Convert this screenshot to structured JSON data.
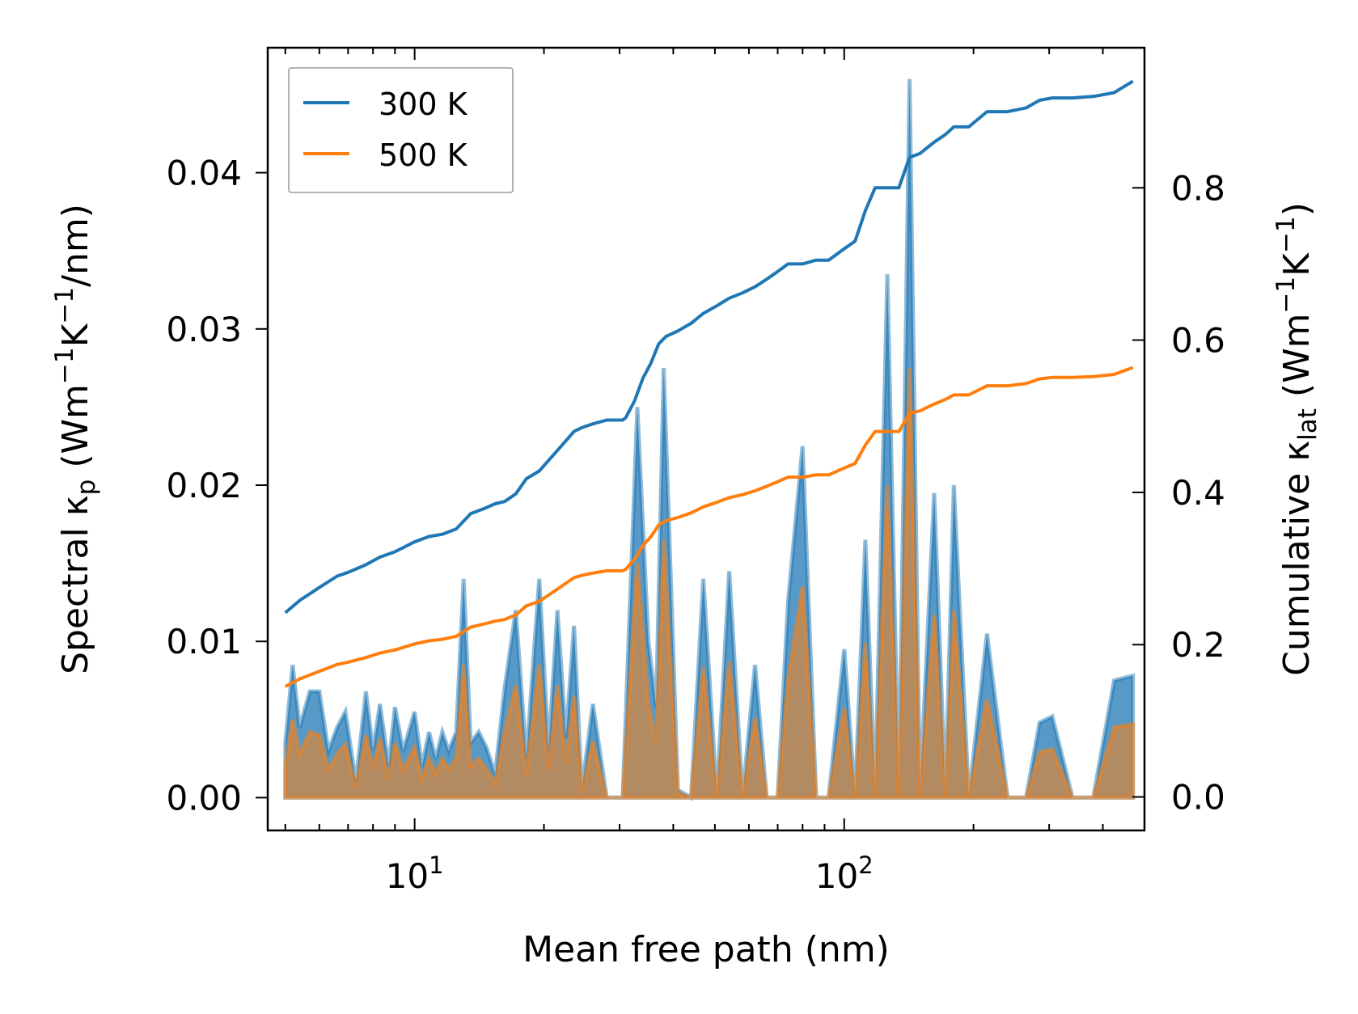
{
  "chart_data": {
    "type": "line",
    "xscale": "log",
    "xlim": [
      4.55,
      500
    ],
    "xlabel": "Mean free path (nm)",
    "x_ticks": [
      {
        "value": 10,
        "base": "10",
        "exp": "1"
      },
      {
        "value": 100,
        "base": "10",
        "exp": "2"
      }
    ],
    "left_axis": {
      "label_prefix": "Spectral κ",
      "label_sub": "p",
      "label_unit_1": " (Wm",
      "label_sup_1": "−1",
      "label_unit_2": "K",
      "label_sup_2": "−1",
      "label_unit_3": "/nm)",
      "ylim": [
        -0.0021,
        0.048
      ],
      "ticks": [
        0.0,
        0.01,
        0.02,
        0.03,
        0.04
      ],
      "tick_labels": [
        "0.00",
        "0.01",
        "0.02",
        "0.03",
        "0.04"
      ]
    },
    "right_axis": {
      "label_prefix": "Cumulative κ",
      "label_sub": "lat",
      "label_unit_1": " (Wm",
      "label_sup_1": "−1",
      "label_unit_2": "K",
      "label_sup_2": "−1",
      "label_unit_3": ")",
      "ylim": [
        -0.044,
        0.984
      ],
      "ticks": [
        0.0,
        0.2,
        0.4,
        0.6,
        0.8
      ],
      "tick_labels": [
        "0.0",
        "0.2",
        "0.4",
        "0.6",
        "0.8"
      ]
    },
    "legend": {
      "position": "top-left",
      "entries": [
        {
          "label": "300 K",
          "color": "#1f77b4"
        },
        {
          "label": "500 K",
          "color": "#ff7f0e"
        }
      ]
    },
    "series": [
      {
        "name": "300 K",
        "color": "#1f77b4",
        "spectral": {
          "x": [
            5.0,
            5.2,
            5.4,
            5.7,
            6.0,
            6.3,
            6.6,
            6.9,
            7.3,
            7.7,
            8.0,
            8.3,
            8.7,
            9.0,
            9.4,
            10.0,
            10.4,
            10.8,
            11.2,
            11.6,
            12.0,
            12.5,
            13.0,
            13.5,
            14.1,
            14.7,
            15.4,
            16.2,
            17.2,
            18.2,
            19.5,
            20.5,
            21.5,
            22.5,
            23.5,
            24.5,
            26.0,
            28.0,
            30.5,
            33.0,
            35.0,
            36.5,
            38.0,
            41.0,
            44.0,
            47.0,
            50.5,
            54.0,
            58.0,
            62.0,
            66.0,
            70.0,
            74.0,
            80.0,
            86.0,
            92.0,
            100.0,
            106.0,
            112.0,
            118.0,
            126.0,
            134.0,
            142.0,
            150.0,
            162.0,
            172.0,
            180.0,
            195.0,
            215.0,
            240.0,
            265.0,
            285.0,
            305.0,
            340.0,
            380.0,
            425.0,
            470.0
          ],
          "values": [
            0.0035,
            0.0085,
            0.0045,
            0.0068,
            0.0068,
            0.003,
            0.0045,
            0.0055,
            0.001,
            0.0068,
            0.003,
            0.006,
            0.002,
            0.0058,
            0.003,
            0.0055,
            0.002,
            0.0042,
            0.0025,
            0.0042,
            0.003,
            0.0042,
            0.014,
            0.0035,
            0.0042,
            0.0032,
            0.0015,
            0.007,
            0.012,
            0.0025,
            0.014,
            0.003,
            0.012,
            0.0038,
            0.011,
            0.0005,
            0.006,
            0.0,
            0.0,
            0.025,
            0.01,
            0.0058,
            0.0275,
            0.0005,
            0.0,
            0.014,
            0.0,
            0.0145,
            0.0,
            0.0085,
            0.0,
            0.0,
            0.0125,
            0.0225,
            0.0,
            0.0,
            0.0095,
            0.0,
            0.0165,
            0.0,
            0.0335,
            0.0,
            0.046,
            0.0,
            0.0195,
            0.0,
            0.02,
            0.0,
            0.0105,
            0.0,
            0.0,
            0.0048,
            0.0052,
            0.0,
            0.0,
            0.0075,
            0.0078
          ]
        },
        "cumulative": {
          "x": [
            5.0,
            5.4,
            6.0,
            6.6,
            7.0,
            7.7,
            8.3,
            9.0,
            10.0,
            10.8,
            11.6,
            12.5,
            13.5,
            14.7,
            15.4,
            16.2,
            17.2,
            18.2,
            19.5,
            20.5,
            21.5,
            23.5,
            24.5,
            26.0,
            28.0,
            30.5,
            31.0,
            32.5,
            34.0,
            35.5,
            37.0,
            38.5,
            41.0,
            44.0,
            47.0,
            50.5,
            54.0,
            58.0,
            62.0,
            66.0,
            70.0,
            74.0,
            80.0,
            86.0,
            92.0,
            100.0,
            106.0,
            112.0,
            118.0,
            126.0,
            134.0,
            142.0,
            150.0,
            162.0,
            172.0,
            180.0,
            195.0,
            215.0,
            240.0,
            265.0,
            285.0,
            305.0,
            340.0,
            380.0,
            425.0,
            470.0
          ],
          "values": [
            0.242,
            0.258,
            0.275,
            0.29,
            0.295,
            0.305,
            0.315,
            0.322,
            0.335,
            0.342,
            0.345,
            0.352,
            0.372,
            0.38,
            0.385,
            0.388,
            0.398,
            0.418,
            0.428,
            0.442,
            0.455,
            0.48,
            0.485,
            0.49,
            0.495,
            0.495,
            0.498,
            0.52,
            0.55,
            0.57,
            0.595,
            0.605,
            0.612,
            0.622,
            0.635,
            0.645,
            0.655,
            0.662,
            0.67,
            0.68,
            0.69,
            0.7,
            0.7,
            0.705,
            0.705,
            0.72,
            0.73,
            0.77,
            0.8,
            0.8,
            0.8,
            0.84,
            0.845,
            0.86,
            0.87,
            0.88,
            0.88,
            0.9,
            0.9,
            0.905,
            0.915,
            0.918,
            0.918,
            0.92,
            0.925,
            0.94
          ]
        }
      },
      {
        "name": "500 K",
        "color": "#ff7f0e",
        "spectral": {
          "x": [
            5.0,
            5.2,
            5.4,
            5.7,
            6.0,
            6.3,
            6.6,
            6.9,
            7.3,
            7.7,
            8.0,
            8.3,
            8.7,
            9.0,
            9.4,
            10.0,
            10.4,
            10.8,
            11.2,
            11.6,
            12.0,
            12.5,
            13.0,
            13.5,
            14.1,
            14.7,
            15.4,
            16.2,
            17.2,
            18.2,
            19.5,
            20.5,
            21.5,
            22.5,
            23.5,
            24.5,
            26.0,
            28.0,
            30.5,
            33.0,
            35.0,
            36.5,
            38.0,
            41.0,
            44.0,
            47.0,
            50.5,
            54.0,
            58.0,
            62.0,
            66.0,
            70.0,
            74.0,
            80.0,
            86.0,
            92.0,
            100.0,
            106.0,
            112.0,
            118.0,
            126.0,
            134.0,
            142.0,
            150.0,
            162.0,
            172.0,
            180.0,
            195.0,
            215.0,
            240.0,
            265.0,
            285.0,
            305.0,
            340.0,
            380.0,
            425.0,
            470.0
          ],
          "values": [
            0.002,
            0.005,
            0.0028,
            0.0042,
            0.004,
            0.0018,
            0.0028,
            0.0034,
            0.0006,
            0.004,
            0.0018,
            0.0038,
            0.0012,
            0.0035,
            0.0018,
            0.0032,
            0.0012,
            0.0025,
            0.0015,
            0.0025,
            0.0018,
            0.0025,
            0.0085,
            0.002,
            0.0025,
            0.0018,
            0.0009,
            0.0042,
            0.0072,
            0.0015,
            0.0085,
            0.0018,
            0.0072,
            0.0022,
            0.0065,
            0.0003,
            0.0036,
            0.0,
            0.0,
            0.015,
            0.006,
            0.0035,
            0.0165,
            0.0003,
            0.0,
            0.0084,
            0.0,
            0.0087,
            0.0,
            0.0051,
            0.0,
            0.0,
            0.0075,
            0.0135,
            0.0,
            0.0,
            0.0057,
            0.0,
            0.0099,
            0.0,
            0.02,
            0.0,
            0.0275,
            0.0,
            0.0117,
            0.0,
            0.012,
            0.0,
            0.0063,
            0.0,
            0.0,
            0.0029,
            0.0031,
            0.0,
            0.0,
            0.0045,
            0.0047
          ]
        },
        "cumulative": {
          "x": [
            5.0,
            5.4,
            6.0,
            6.6,
            7.0,
            7.7,
            8.3,
            9.0,
            10.0,
            10.8,
            11.6,
            12.5,
            13.5,
            14.7,
            15.4,
            16.2,
            17.2,
            18.2,
            19.5,
            20.5,
            21.5,
            23.5,
            24.5,
            26.0,
            28.0,
            30.5,
            31.0,
            32.5,
            34.0,
            35.5,
            37.0,
            38.5,
            41.0,
            44.0,
            47.0,
            50.5,
            54.0,
            58.0,
            62.0,
            66.0,
            70.0,
            74.0,
            80.0,
            86.0,
            92.0,
            100.0,
            106.0,
            112.0,
            118.0,
            126.0,
            134.0,
            142.0,
            150.0,
            162.0,
            172.0,
            180.0,
            195.0,
            215.0,
            240.0,
            265.0,
            285.0,
            305.0,
            340.0,
            380.0,
            425.0,
            470.0
          ],
          "values": [
            0.145,
            0.155,
            0.165,
            0.174,
            0.177,
            0.183,
            0.189,
            0.193,
            0.201,
            0.205,
            0.207,
            0.211,
            0.223,
            0.228,
            0.231,
            0.233,
            0.239,
            0.251,
            0.257,
            0.265,
            0.273,
            0.288,
            0.291,
            0.294,
            0.297,
            0.297,
            0.299,
            0.312,
            0.33,
            0.342,
            0.357,
            0.363,
            0.367,
            0.373,
            0.381,
            0.387,
            0.393,
            0.397,
            0.402,
            0.408,
            0.414,
            0.42,
            0.42,
            0.423,
            0.423,
            0.432,
            0.438,
            0.462,
            0.48,
            0.48,
            0.48,
            0.504,
            0.507,
            0.516,
            0.522,
            0.528,
            0.528,
            0.54,
            0.54,
            0.543,
            0.549,
            0.551,
            0.551,
            0.552,
            0.555,
            0.564
          ]
        }
      }
    ]
  }
}
